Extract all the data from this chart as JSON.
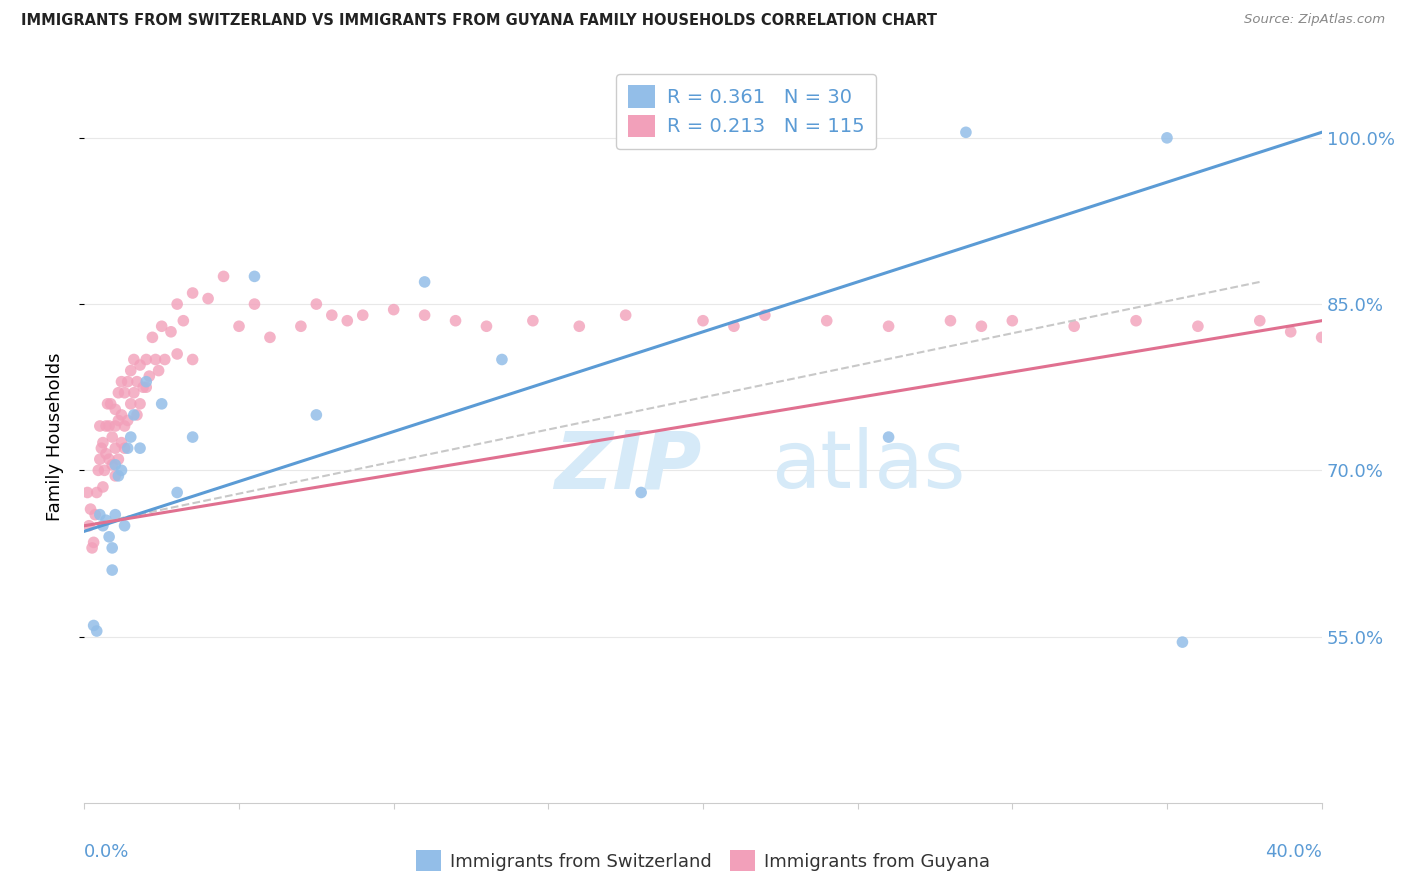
{
  "title": "IMMIGRANTS FROM SWITZERLAND VS IMMIGRANTS FROM GUYANA FAMILY HOUSEHOLDS CORRELATION CHART",
  "source": "Source: ZipAtlas.com",
  "ylabel": "Family Households",
  "yticks": [
    55.0,
    70.0,
    85.0,
    100.0
  ],
  "ytick_labels": [
    "55.0%",
    "70.0%",
    "85.0%",
    "100.0%"
  ],
  "xlim": [
    0.0,
    40.0
  ],
  "ylim": [
    40.0,
    106.0
  ],
  "color_switzerland": "#93BEE8",
  "color_guyana": "#F2A0BA",
  "color_trend_switzerland": "#5B9BD5",
  "color_trend_guyana": "#E07090",
  "color_trend_dashed": "#C8C8C8",
  "watermark_zip": "ZIP",
  "watermark_atlas": "atlas",
  "watermark_color": "#D6EAF8",
  "sw_trend_x0": 0.0,
  "sw_trend_y0": 64.5,
  "sw_trend_x1": 40.0,
  "sw_trend_y1": 100.5,
  "gy_trend_x0": 0.0,
  "gy_trend_y0": 65.0,
  "gy_trend_x1": 40.0,
  "gy_trend_y1": 83.5,
  "dash_trend_x0": 0.0,
  "dash_trend_y0": 65.0,
  "dash_trend_x1": 38.0,
  "dash_trend_y1": 87.0,
  "sw_x": [
    0.3,
    0.4,
    0.5,
    0.6,
    0.7,
    0.8,
    0.9,
    0.9,
    1.0,
    1.0,
    1.1,
    1.2,
    1.3,
    1.4,
    1.5,
    1.6,
    1.8,
    2.0,
    2.5,
    3.0,
    3.5,
    5.5,
    7.5,
    11.0,
    13.5,
    18.0,
    26.0,
    28.5,
    35.0,
    35.5
  ],
  "sw_y": [
    56.0,
    55.5,
    66.0,
    65.0,
    65.5,
    64.0,
    63.0,
    61.0,
    66.0,
    70.5,
    69.5,
    70.0,
    65.0,
    72.0,
    73.0,
    75.0,
    72.0,
    78.0,
    76.0,
    68.0,
    73.0,
    87.5,
    75.0,
    87.0,
    80.0,
    68.0,
    73.0,
    100.5,
    100.0,
    54.5
  ],
  "gy_x": [
    0.1,
    0.15,
    0.2,
    0.25,
    0.3,
    0.35,
    0.4,
    0.45,
    0.5,
    0.5,
    0.55,
    0.6,
    0.6,
    0.65,
    0.7,
    0.7,
    0.75,
    0.8,
    0.8,
    0.85,
    0.9,
    0.9,
    1.0,
    1.0,
    1.0,
    1.0,
    1.1,
    1.1,
    1.1,
    1.2,
    1.2,
    1.2,
    1.3,
    1.3,
    1.3,
    1.4,
    1.4,
    1.5,
    1.5,
    1.6,
    1.6,
    1.7,
    1.7,
    1.8,
    1.8,
    1.9,
    2.0,
    2.0,
    2.1,
    2.2,
    2.3,
    2.4,
    2.5,
    2.6,
    2.8,
    3.0,
    3.0,
    3.2,
    3.5,
    3.5,
    4.0,
    4.5,
    5.0,
    5.5,
    6.0,
    7.0,
    7.5,
    8.0,
    8.5,
    9.0,
    10.0,
    11.0,
    12.0,
    13.0,
    14.5,
    16.0,
    17.5,
    20.0,
    21.0,
    22.0,
    24.0,
    26.0,
    28.0,
    29.0,
    30.0,
    32.0,
    34.0,
    36.0,
    38.0,
    39.0,
    40.0
  ],
  "gy_y": [
    68.0,
    65.0,
    66.5,
    63.0,
    63.5,
    66.0,
    68.0,
    70.0,
    74.0,
    71.0,
    72.0,
    72.5,
    68.5,
    70.0,
    74.0,
    71.5,
    76.0,
    74.0,
    71.0,
    76.0,
    73.0,
    70.5,
    75.5,
    74.0,
    72.0,
    69.5,
    77.0,
    74.5,
    71.0,
    78.0,
    75.0,
    72.5,
    77.0,
    74.0,
    72.0,
    78.0,
    74.5,
    79.0,
    76.0,
    80.0,
    77.0,
    78.0,
    75.0,
    79.5,
    76.0,
    77.5,
    80.0,
    77.5,
    78.5,
    82.0,
    80.0,
    79.0,
    83.0,
    80.0,
    82.5,
    85.0,
    80.5,
    83.5,
    86.0,
    80.0,
    85.5,
    87.5,
    83.0,
    85.0,
    82.0,
    83.0,
    85.0,
    84.0,
    83.5,
    84.0,
    84.5,
    84.0,
    83.5,
    83.0,
    83.5,
    83.0,
    84.0,
    83.5,
    83.0,
    84.0,
    83.5,
    83.0,
    83.5,
    83.0,
    83.5,
    83.0,
    83.5,
    83.0,
    83.5,
    82.5,
    82.0
  ],
  "grid_color": "#E8E8E8",
  "spine_color": "#CCCCCC"
}
